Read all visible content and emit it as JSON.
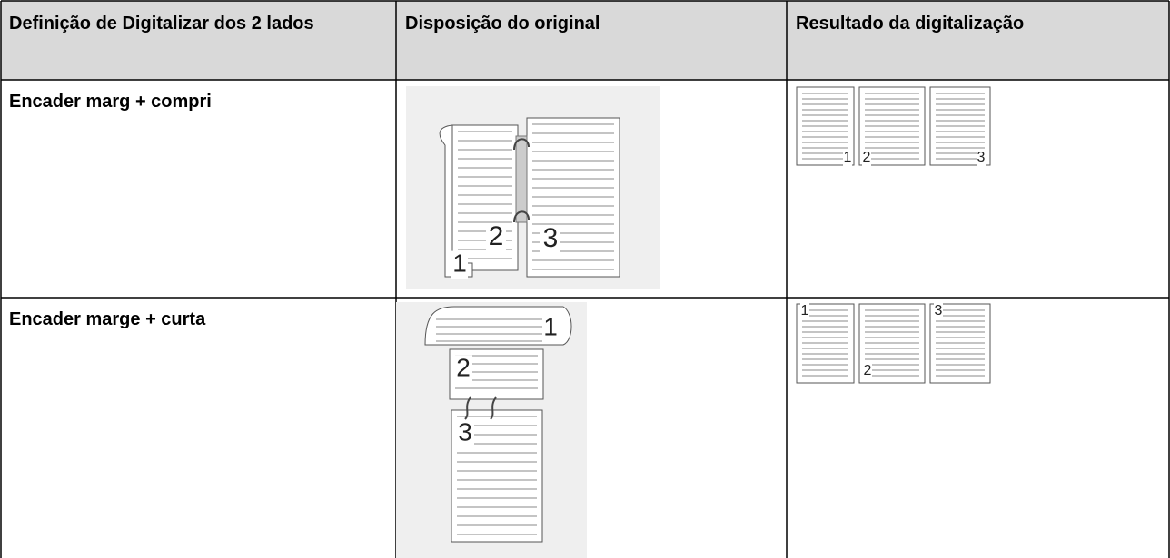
{
  "table": {
    "headers": [
      "Definição de Digitalizar dos 2 lados",
      "Disposição do original",
      "Resultado da digitalização"
    ],
    "rows": [
      {
        "setting": "Encader marg + compri",
        "original_page_numbers": [
          "1",
          "2",
          "3"
        ],
        "result_page_numbers": [
          "1",
          "2",
          "3"
        ]
      },
      {
        "setting": "Encader marge + curta",
        "original_page_numbers": [
          "1",
          "2",
          "3"
        ],
        "result_page_numbers": [
          "1",
          "2",
          "3"
        ]
      }
    ]
  }
}
